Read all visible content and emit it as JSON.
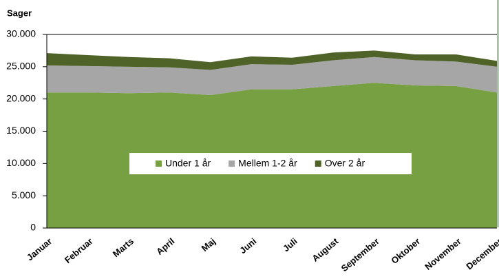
{
  "chart_data": {
    "type": "stacked_area",
    "y_label": "Sager",
    "categories": [
      "Januar",
      "Februar",
      "Marts",
      "April",
      "Maj",
      "Juni",
      "Juli",
      "August",
      "September",
      "Oktober",
      "November",
      "December"
    ],
    "series": [
      {
        "name": "Under 1 år",
        "color": "#77a043",
        "values": [
          21000,
          21000,
          20900,
          21000,
          20600,
          21500,
          21500,
          22000,
          22500,
          22100,
          22000,
          21000
        ]
      },
      {
        "name": "Mellem 1-2 år",
        "color": "#a6a6a6",
        "values": [
          4200,
          4100,
          4100,
          3900,
          3900,
          3900,
          3800,
          4000,
          4000,
          3900,
          3800,
          4000
        ]
      },
      {
        "name": "Over 2 år",
        "color": "#4f6228",
        "values": [
          1900,
          1700,
          1500,
          1400,
          1200,
          1200,
          1100,
          1200,
          1000,
          900,
          1100,
          900
        ]
      }
    ],
    "ylim": [
      0,
      30000
    ],
    "yticks": [
      0,
      {
        "value": 5000,
        "label": "5.000"
      },
      {
        "value": 10000,
        "label": "10.000"
      },
      {
        "value": 15000,
        "label": "15.000"
      },
      {
        "value": 20000,
        "label": "20.000"
      },
      {
        "value": 25000,
        "label": "25.000"
      },
      {
        "value": 30000,
        "label": "30.000"
      }
    ],
    "legend": "center"
  }
}
